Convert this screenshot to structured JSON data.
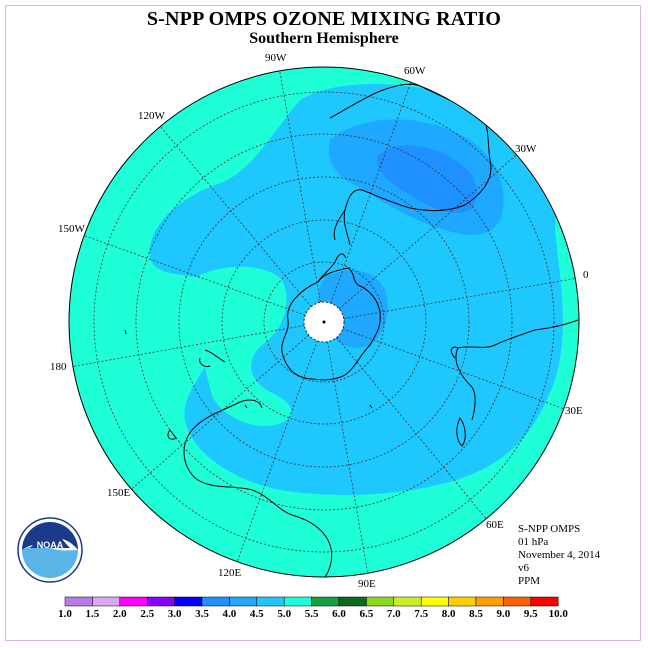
{
  "title": "S-NPP OMPS OZONE MIXING RATIO",
  "subtitle": "Southern Hemisphere",
  "longitude_labels": [
    {
      "id": "90w",
      "text": "90W"
    },
    {
      "id": "60w",
      "text": "60W"
    },
    {
      "id": "30w",
      "text": "30W"
    },
    {
      "id": "0",
      "text": "0"
    },
    {
      "id": "30e",
      "text": "30E"
    },
    {
      "id": "60e",
      "text": "60E"
    },
    {
      "id": "90e",
      "text": "90E"
    },
    {
      "id": "120e",
      "text": "120E"
    },
    {
      "id": "150e",
      "text": "150E"
    },
    {
      "id": "180",
      "text": "180"
    },
    {
      "id": "150w",
      "text": "150W"
    },
    {
      "id": "120w",
      "text": "120W"
    }
  ],
  "info": {
    "instrument": "S-NPP OMPS",
    "level": "01 hPa",
    "date": "November 4, 2014",
    "version": "v6",
    "units": "PPM"
  },
  "logo_text": "NOAA",
  "colorbar": {
    "labels": [
      "1.0",
      "1.5",
      "2.0",
      "2.5",
      "3.0",
      "3.5",
      "4.0",
      "4.5",
      "5.0",
      "5.5",
      "6.0",
      "6.5",
      "7.0",
      "7.5",
      "8.0",
      "8.5",
      "9.0",
      "9.5",
      "10.0"
    ],
    "colors": [
      "#b57ee6",
      "#d8a8f0",
      "#ff00ff",
      "#8800ff",
      "#0000ff",
      "#1e90ff",
      "#1ea8ff",
      "#1ec8ff",
      "#1effd8",
      "#16a040",
      "#0a6a20",
      "#8ad820",
      "#c8f020",
      "#ffff00",
      "#ffd000",
      "#ffa000",
      "#ff6000",
      "#ff0000",
      "#8b5a3c"
    ]
  },
  "colors": {
    "level_5": "#1effd8",
    "level_45": "#1ec8ff",
    "level_40": "#1ea8ff",
    "level_35": "#1e90ff"
  }
}
